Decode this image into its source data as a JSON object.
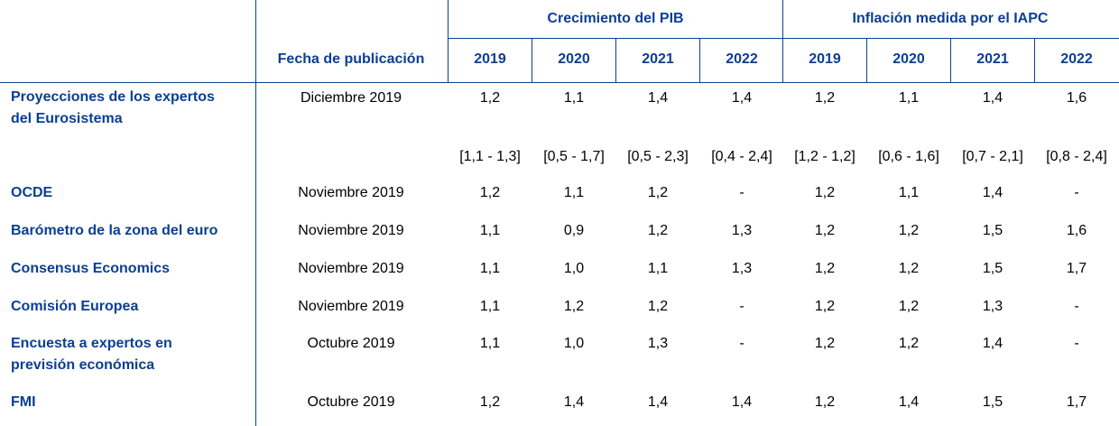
{
  "header": {
    "date_column": "Fecha de publicación",
    "group_gdp": "Crecimiento del PIB",
    "group_inflation": "Inflación medida por el IAPC",
    "years": [
      "2019",
      "2020",
      "2021",
      "2022"
    ]
  },
  "rows": [
    {
      "label": [
        "Proyecciones de los expertos",
        "del Eurosistema"
      ],
      "date": "Diciembre 2019",
      "gdp": [
        "1,2",
        "1,1",
        "1,4",
        "1,4"
      ],
      "inflation": [
        "1,2",
        "1,1",
        "1,4",
        "1,6"
      ],
      "gdp_ranges": [
        "[1,1 - 1,3]",
        "[0,5 - 1,7]",
        "[0,5 - 2,3]",
        "[0,4 - 2,4]"
      ],
      "inflation_ranges": [
        "[1,2 - 1,2]",
        "[0,6 - 1,6]",
        "[0,7 - 2,1]",
        "[0,8 - 2,4]"
      ]
    },
    {
      "label": [
        "OCDE"
      ],
      "date": "Noviembre 2019",
      "gdp": [
        "1,2",
        "1,1",
        "1,2",
        "-"
      ],
      "inflation": [
        "1,2",
        "1,1",
        "1,4",
        "-"
      ]
    },
    {
      "label": [
        "Barómetro de la zona del euro"
      ],
      "date": "Noviembre 2019",
      "gdp": [
        "1,1",
        "0,9",
        "1,2",
        "1,3"
      ],
      "inflation": [
        "1,2",
        "1,2",
        "1,5",
        "1,6"
      ]
    },
    {
      "label": [
        "Consensus Economics"
      ],
      "date": "Noviembre 2019",
      "gdp": [
        "1,1",
        "1,0",
        "1,1",
        "1,3"
      ],
      "inflation": [
        "1,2",
        "1,2",
        "1,5",
        "1,7"
      ]
    },
    {
      "label": [
        "Comisión Europea"
      ],
      "date": "Noviembre 2019",
      "gdp": [
        "1,1",
        "1,2",
        "1,2",
        "-"
      ],
      "inflation": [
        "1,2",
        "1,2",
        "1,3",
        "-"
      ]
    },
    {
      "label": [
        "Encuesta a expertos en",
        "previsión económica"
      ],
      "date": "Octubre 2019",
      "gdp": [
        "1,1",
        "1,0",
        "1,3",
        "-"
      ],
      "inflation": [
        "1,2",
        "1,2",
        "1,4",
        "-"
      ]
    },
    {
      "label": [
        "FMI"
      ],
      "date": "Octubre 2019",
      "gdp": [
        "1,2",
        "1,4",
        "1,4",
        "1,4"
      ],
      "inflation": [
        "1,2",
        "1,4",
        "1,5",
        "1,7"
      ]
    }
  ]
}
